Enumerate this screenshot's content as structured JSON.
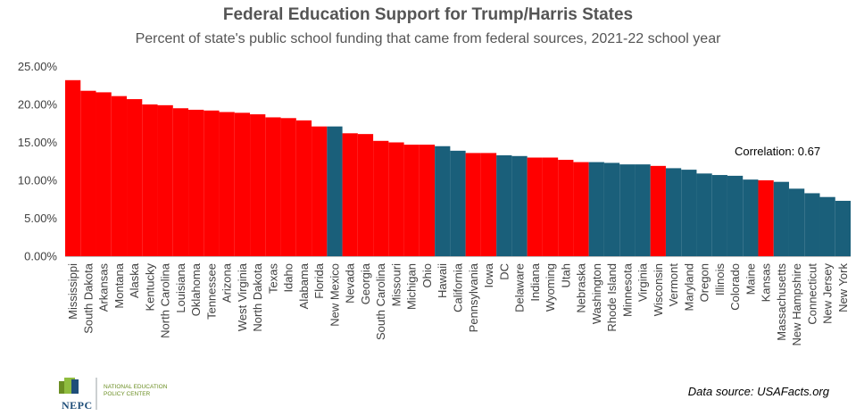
{
  "header": {
    "title": "Federal Education Support for Trump/Harris States",
    "subtitle": "Percent of state's public school funding that came from federal sources, 2021-22 school year"
  },
  "footer": {
    "source": "Data source:  USAFacts.org",
    "logo_name": "NEPC",
    "logo_org_line1": "National Education",
    "logo_org_line2": "Policy Center"
  },
  "colors": {
    "trump": "#ff0000",
    "harris": "#1a5f7a",
    "axis": "#bfbfbf"
  },
  "chart_data": {
    "type": "bar",
    "title": "Federal Education Support for Trump/Harris States",
    "subtitle": "Percent of state's public school funding that came from federal sources, 2021-22 school year",
    "ylim": [
      0,
      25
    ],
    "yticks": [
      0,
      5,
      10,
      15,
      20,
      25
    ],
    "ytick_labels": [
      "0.00%",
      "5.00%",
      "10.00%",
      "15.00%",
      "20.00%",
      "25.00%"
    ],
    "grid": false,
    "annotation": "Correlation: 0.67",
    "categories": [
      "Mississippi",
      "South Dakota",
      "Arkansas",
      "Montana",
      "Alaska",
      "Kentucky",
      "North Carolina",
      "Louisiana",
      "Oklahoma",
      "Tennessee",
      "Arizona",
      "West Virginia",
      "North Dakota",
      "Texas",
      "Idaho",
      "Alabama",
      "Florida",
      "New Mexico",
      "Nevada",
      "Georgia",
      "South Carolina",
      "Missouri",
      "Michigan",
      "Ohio",
      "Hawaii",
      "California",
      "Pennsylvania",
      "Iowa",
      "DC",
      "Delaware",
      "Indiana",
      "Wyoming",
      "Utah",
      "Nebraska",
      "Washington",
      "Rhode Island",
      "Minnesota",
      "Virginia",
      "Wisconsin",
      "Vermont",
      "Maryland",
      "Oregon",
      "Illinois",
      "Colorado",
      "Maine",
      "Kansas",
      "Massachusetts",
      "New Hampshire",
      "Connecticut",
      "New Jersey",
      "New York"
    ],
    "values": [
      23.2,
      21.8,
      21.6,
      21.1,
      20.7,
      20.0,
      19.9,
      19.5,
      19.3,
      19.2,
      19.0,
      18.9,
      18.7,
      18.3,
      18.2,
      17.9,
      17.1,
      17.1,
      16.2,
      16.1,
      15.2,
      15.0,
      14.7,
      14.7,
      14.5,
      13.9,
      13.6,
      13.6,
      13.3,
      13.2,
      13.0,
      13.0,
      12.7,
      12.4,
      12.4,
      12.3,
      12.1,
      12.1,
      11.9,
      11.6,
      11.4,
      10.9,
      10.7,
      10.6,
      10.1,
      10.0,
      9.8,
      8.9,
      8.3,
      7.8,
      7.3
    ],
    "winner": [
      "Trump",
      "Trump",
      "Trump",
      "Trump",
      "Trump",
      "Trump",
      "Trump",
      "Trump",
      "Trump",
      "Trump",
      "Trump",
      "Trump",
      "Trump",
      "Trump",
      "Trump",
      "Trump",
      "Trump",
      "Harris",
      "Trump",
      "Trump",
      "Trump",
      "Trump",
      "Trump",
      "Trump",
      "Harris",
      "Harris",
      "Trump",
      "Trump",
      "Harris",
      "Harris",
      "Trump",
      "Trump",
      "Trump",
      "Trump",
      "Harris",
      "Harris",
      "Harris",
      "Harris",
      "Trump",
      "Harris",
      "Harris",
      "Harris",
      "Harris",
      "Harris",
      "Harris",
      "Trump",
      "Harris",
      "Harris",
      "Harris",
      "Harris",
      "Harris"
    ]
  }
}
